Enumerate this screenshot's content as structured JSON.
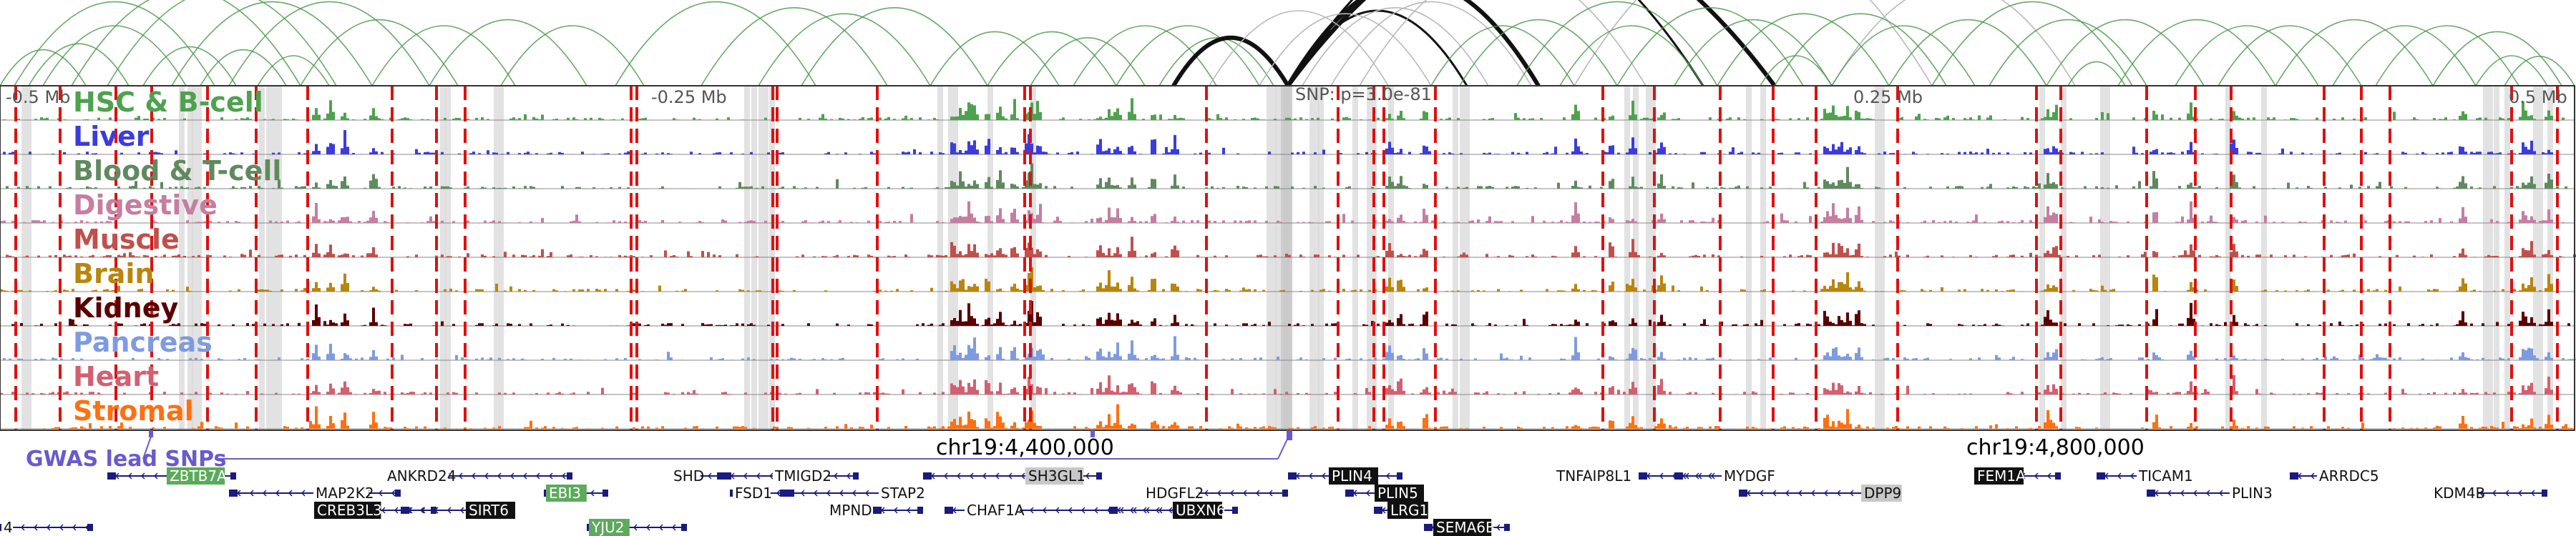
{
  "figure": {
    "ticks": [
      "-0.5 Mb",
      "-0.25 Mb",
      "0.25 Mb",
      "0.5 Mb"
    ],
    "snp_label": "SNP: p=3.0e-81",
    "gwas_label": "GWAS lead SNPs",
    "coordinates": [
      "chr19:4,400,000",
      "chr19:4,800,000"
    ]
  },
  "tracks": [
    {
      "name": "HSC & B-cell",
      "color": "#4ea24e"
    },
    {
      "name": "Liver",
      "color": "#3c3cdc"
    },
    {
      "name": "Blood & T-cell",
      "color": "#5f8a5f"
    },
    {
      "name": "Digestive",
      "color": "#c47fa0"
    },
    {
      "name": "Muscle",
      "color": "#c0504d"
    },
    {
      "name": "Brain",
      "color": "#b8860b"
    },
    {
      "name": "Kidney",
      "color": "#5a0000"
    },
    {
      "name": "Pancreas",
      "color": "#7f9be0"
    },
    {
      "name": "Heart",
      "color": "#d26070"
    },
    {
      "name": "Stromal",
      "color": "#ff7010"
    }
  ],
  "genes": [
    {
      "name": "ZBTB7A",
      "highlight": "green"
    },
    {
      "name": "ANKRD24",
      "highlight": "none"
    },
    {
      "name": "SHD",
      "highlight": "none"
    },
    {
      "name": "TMIGD2",
      "highlight": "none"
    },
    {
      "name": "SH3GL1",
      "highlight": "gray"
    },
    {
      "name": "PLIN4",
      "highlight": "black"
    },
    {
      "name": "TNFAIP8L1",
      "highlight": "none"
    },
    {
      "name": "MYDGF",
      "highlight": "none"
    },
    {
      "name": "FEM1A",
      "highlight": "black"
    },
    {
      "name": "TICAM1",
      "highlight": "none"
    },
    {
      "name": "ARRDC5",
      "highlight": "none"
    },
    {
      "name": "MAP2K2",
      "highlight": "none"
    },
    {
      "name": "EBI3",
      "highlight": "green"
    },
    {
      "name": "FSD1",
      "highlight": "none"
    },
    {
      "name": "STAP2",
      "highlight": "none"
    },
    {
      "name": "HDGFL2",
      "highlight": "none"
    },
    {
      "name": "PLIN5",
      "highlight": "black"
    },
    {
      "name": "DPP9",
      "highlight": "gray"
    },
    {
      "name": "PLIN3",
      "highlight": "none"
    },
    {
      "name": "KDM4B",
      "highlight": "none"
    },
    {
      "name": "CREB3L3",
      "highlight": "black"
    },
    {
      "name": "SIRT6",
      "highlight": "black"
    },
    {
      "name": "MPND",
      "highlight": "none"
    },
    {
      "name": "CHAF1A",
      "highlight": "none"
    },
    {
      "name": "UBXN6",
      "highlight": "black"
    },
    {
      "name": "LRG1",
      "highlight": "black"
    },
    {
      "name": "4",
      "highlight": "none"
    },
    {
      "name": "YJU2",
      "highlight": "green"
    },
    {
      "name": "SEMA6B",
      "highlight": "black"
    }
  ]
}
